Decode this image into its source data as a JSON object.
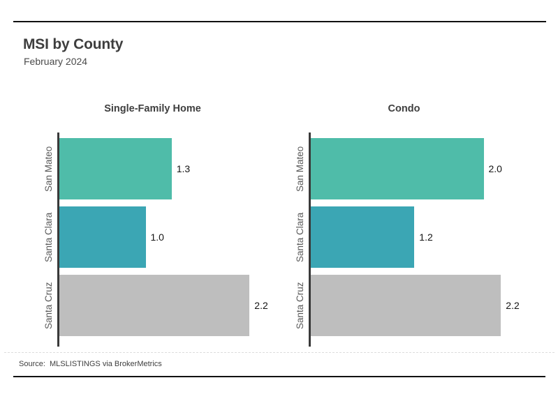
{
  "page": {
    "title": "MSI by County",
    "subtitle": "February 2024",
    "source": "Source:  MLSLISTINGS via BrokerMetrics"
  },
  "colors": {
    "bar_san_mateo": "#4FBCA9",
    "bar_santa_clara": "#3BA6B4",
    "bar_santa_cruz": "#BEBEBE",
    "axis": "#3A3A3A",
    "rule": "#111111",
    "heading_text": "#3E3E3E",
    "category_text": "#5A5A5A",
    "value_text": "#141414"
  },
  "chart_data": [
    {
      "type": "bar",
      "orientation": "horizontal",
      "title": "Single-Family Home",
      "categories": [
        "San Mateo",
        "Santa Clara",
        "Santa Cruz"
      ],
      "values": [
        1.3,
        1.0,
        2.2
      ],
      "value_labels": [
        "1.3",
        "1.0",
        "2.2"
      ],
      "bar_colors": [
        "#4FBCA9",
        "#3BA6B4",
        "#BEBEBE"
      ],
      "xlim": [
        0,
        2.2
      ],
      "grid": false,
      "legend": false
    },
    {
      "type": "bar",
      "orientation": "horizontal",
      "title": "Condo",
      "categories": [
        "San Mateo",
        "Santa Clara",
        "Santa Cruz"
      ],
      "values": [
        2.0,
        1.2,
        2.2
      ],
      "value_labels": [
        "2.0",
        "1.2",
        "2.2"
      ],
      "bar_colors": [
        "#4FBCA9",
        "#3BA6B4",
        "#BEBEBE"
      ],
      "xlim": [
        0,
        2.2
      ],
      "grid": false,
      "legend": false
    }
  ]
}
